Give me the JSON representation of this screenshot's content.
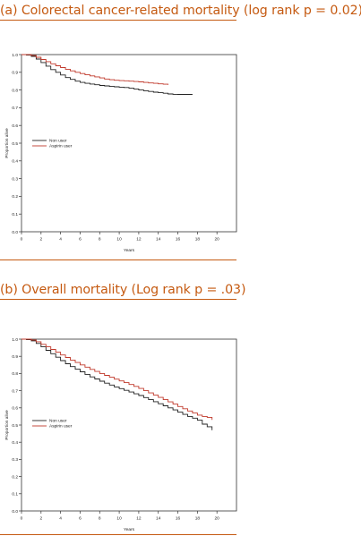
{
  "panels": [
    {
      "title": "(a) Colorectal cancer-related mortality (log rank p = 0.02)",
      "chart_data": {
        "type": "line",
        "title": "(a) Colorectal cancer-related mortality (log rank p = 0.02)",
        "xlabel": "Years",
        "ylabel": "Proportion alive",
        "xlim": [
          0,
          22
        ],
        "ylim": [
          0.0,
          1.0
        ],
        "xticks": [
          "0",
          "2",
          "4",
          "6",
          "8",
          "10",
          "12",
          "14",
          "16",
          "18",
          "20"
        ],
        "yticks": [
          "0.0",
          "0.1",
          "0.2",
          "0.3",
          "0.4",
          "0.5",
          "0.6",
          "0.7",
          "0.8",
          "0.9",
          "1.0"
        ],
        "grid": false,
        "legend": "center-left",
        "series": [
          {
            "name": "Non user",
            "color": "#222222",
            "x": [
              0,
              0.5,
              1,
              1.5,
              2,
              2.5,
              3,
              3.5,
              4,
              4.5,
              5,
              5.5,
              6,
              6.5,
              7,
              7.5,
              8,
              8.5,
              9,
              9.5,
              10,
              10.5,
              11,
              11.5,
              12,
              12.5,
              13,
              13.5,
              14,
              14.5,
              15,
              15.5,
              16,
              16.5,
              17,
              17.5
            ],
            "y": [
              1.0,
              0.997,
              0.99,
              0.975,
              0.955,
              0.935,
              0.915,
              0.9,
              0.885,
              0.87,
              0.86,
              0.85,
              0.843,
              0.838,
              0.834,
              0.83,
              0.826,
              0.823,
              0.82,
              0.818,
              0.816,
              0.814,
              0.81,
              0.806,
              0.8,
              0.796,
              0.792,
              0.788,
              0.785,
              0.782,
              0.778,
              0.776,
              0.775,
              0.775,
              0.775,
              0.775
            ]
          },
          {
            "name": "Aspirin user",
            "color": "#c0392b",
            "x": [
              0,
              0.5,
              1,
              1.5,
              2,
              2.5,
              3,
              3.5,
              4,
              4.5,
              5,
              5.5,
              6,
              6.5,
              7,
              7.5,
              8,
              8.5,
              9,
              9.5,
              10,
              10.5,
              11,
              11.5,
              12,
              12.5,
              13,
              13.5,
              14,
              14.5,
              15
            ],
            "y": [
              1.0,
              1.0,
              0.995,
              0.985,
              0.972,
              0.96,
              0.948,
              0.937,
              0.927,
              0.917,
              0.908,
              0.9,
              0.893,
              0.886,
              0.88,
              0.874,
              0.868,
              0.862,
              0.858,
              0.855,
              0.853,
              0.852,
              0.85,
              0.848,
              0.846,
              0.843,
              0.84,
              0.838,
              0.835,
              0.833,
              0.83
            ]
          }
        ]
      }
    },
    {
      "title": "(b) Overall mortality (Log rank p = .03)",
      "chart_data": {
        "type": "line",
        "title": "(b) Overall mortality (Log rank p = .03)",
        "xlabel": "Years",
        "ylabel": "Proportion alive",
        "xlim": [
          0,
          22
        ],
        "ylim": [
          0.0,
          1.0
        ],
        "xticks": [
          "0",
          "2",
          "4",
          "6",
          "8",
          "10",
          "12",
          "14",
          "16",
          "18",
          "20"
        ],
        "yticks": [
          "0.0",
          "0.1",
          "0.2",
          "0.3",
          "0.4",
          "0.5",
          "0.6",
          "0.7",
          "0.8",
          "0.9",
          "1.0"
        ],
        "grid": false,
        "legend": "center-left",
        "series": [
          {
            "name": "Non user",
            "color": "#222222",
            "x": [
              0,
              0.5,
              1,
              1.5,
              2,
              2.5,
              3,
              3.5,
              4,
              4.5,
              5,
              5.5,
              6,
              6.5,
              7,
              7.5,
              8,
              8.5,
              9,
              9.5,
              10,
              10.5,
              11,
              11.5,
              12,
              12.5,
              13,
              13.5,
              14,
              14.5,
              15,
              15.5,
              16,
              16.5,
              17,
              17.5,
              18,
              18.5,
              19,
              19.5
            ],
            "y": [
              1.0,
              0.997,
              0.99,
              0.975,
              0.955,
              0.935,
              0.915,
              0.895,
              0.875,
              0.857,
              0.84,
              0.825,
              0.81,
              0.795,
              0.78,
              0.768,
              0.755,
              0.744,
              0.733,
              0.722,
              0.712,
              0.702,
              0.692,
              0.682,
              0.672,
              0.66,
              0.648,
              0.636,
              0.624,
              0.612,
              0.6,
              0.588,
              0.575,
              0.562,
              0.55,
              0.54,
              0.528,
              0.505,
              0.49,
              0.47
            ]
          },
          {
            "name": "Aspirin user",
            "color": "#c0392b",
            "x": [
              0,
              0.5,
              1,
              1.5,
              2,
              2.5,
              3,
              3.5,
              4,
              4.5,
              5,
              5.5,
              6,
              6.5,
              7,
              7.5,
              8,
              8.5,
              9,
              9.5,
              10,
              10.5,
              11,
              11.5,
              12,
              12.5,
              13,
              13.5,
              14,
              14.5,
              15,
              15.5,
              16,
              16.5,
              17,
              17.5,
              18,
              18.5,
              19,
              19.5
            ],
            "y": [
              1.0,
              1.0,
              0.995,
              0.985,
              0.97,
              0.955,
              0.94,
              0.924,
              0.908,
              0.893,
              0.878,
              0.864,
              0.85,
              0.837,
              0.824,
              0.812,
              0.8,
              0.789,
              0.778,
              0.767,
              0.757,
              0.747,
              0.736,
              0.725,
              0.713,
              0.7,
              0.687,
              0.674,
              0.661,
              0.648,
              0.635,
              0.622,
              0.608,
              0.595,
              0.582,
              0.57,
              0.558,
              0.55,
              0.545,
              0.53
            ]
          }
        ]
      }
    }
  ]
}
